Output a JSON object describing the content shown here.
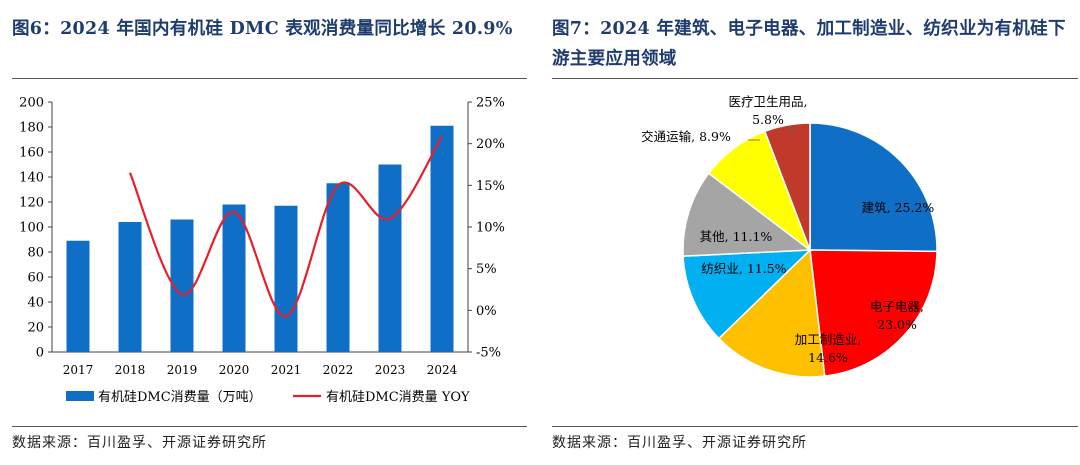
{
  "left": {
    "title": "图6：2024 年国内有机硅 DMC 表观消费量同比增长 20.9%",
    "source": "数据来源：百川盈孚、开源证券研究所"
  },
  "right": {
    "title": "图7：2024 年建筑、电子电器、加工制造业、纺织业为有机硅下游主要应用领域",
    "source": "数据来源：百川盈孚、开源证券研究所"
  },
  "chart_data": [
    {
      "type": "bar",
      "categories": [
        "2017",
        "2018",
        "2019",
        "2020",
        "2021",
        "2022",
        "2023",
        "2024"
      ],
      "series": [
        {
          "name": "有机硅DMC消费量（万吨）",
          "type": "bar",
          "axis": "left",
          "values": [
            89,
            104,
            106,
            118,
            117,
            135,
            150,
            181
          ]
        },
        {
          "name": "有机硅DMC消费量 YOY",
          "type": "line",
          "axis": "right",
          "values": [
            null,
            16.5,
            1.9,
            11.8,
            -0.7,
            15.0,
            11.0,
            20.9
          ]
        }
      ],
      "ylim": [
        0,
        200
      ],
      "yticks": [
        "0",
        "20",
        "40",
        "60",
        "80",
        "100",
        "120",
        "140",
        "160",
        "180",
        "200"
      ],
      "y2lim": [
        -5,
        25
      ],
      "y2ticks": [
        "-5%",
        "0%",
        "5%",
        "10%",
        "15%",
        "20%",
        "25%"
      ],
      "legend_position": "bottom",
      "colors": {
        "bar": "#0f6fc6",
        "line": "#e81f2a"
      }
    },
    {
      "type": "pie",
      "slices": [
        {
          "label": "建筑, 25.2%",
          "value": 25.2,
          "color": "#0f6fc6"
        },
        {
          "label": "电子电器, 23.0%",
          "value": 23.0,
          "color": "#ff0000"
        },
        {
          "label": "加工制造业, 14.6%",
          "value": 14.6,
          "color": "#ffc000"
        },
        {
          "label": "纺织业, 11.5%",
          "value": 11.5,
          "color": "#00b0f0"
        },
        {
          "label": "其他, 11.1%",
          "value": 11.1,
          "color": "#a5a5a5"
        },
        {
          "label": "交通运输, 8.9%",
          "value": 8.9,
          "color": "#ffff00"
        },
        {
          "label": "医疗卫生用品, 5.8%",
          "value": 5.8,
          "color": "#c0392b"
        }
      ]
    }
  ]
}
